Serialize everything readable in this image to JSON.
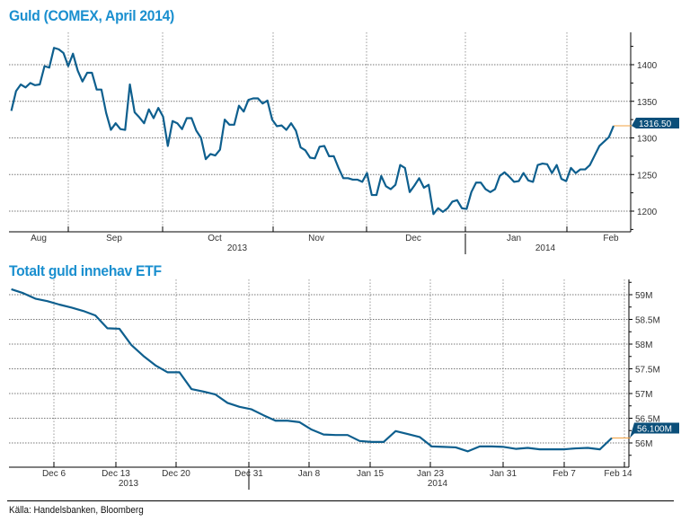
{
  "chart_data": [
    {
      "type": "line",
      "title": "Guld (COMEX, April 2014)",
      "x_tick_labels": [
        "Aug",
        "Sep",
        "Oct",
        "Nov",
        "Dec",
        "Jan",
        "Feb"
      ],
      "x_year_labels": [
        "2013",
        "2014"
      ],
      "y_tick_labels": [
        "1200",
        "1250",
        "1300",
        "1350",
        "1400"
      ],
      "ylim": [
        1175,
        1440
      ],
      "grid": true,
      "last_value_label": "1316.50",
      "colors": {
        "line": "#0e5f8e",
        "title": "#1a8fcf",
        "label_bg": "#0b4f7a",
        "last_line": "#f0a040"
      },
      "series": [
        {
          "values": [
            1337,
            1364,
            1373,
            1369,
            1375,
            1372,
            1373,
            1398,
            1396,
            1423,
            1421,
            1416,
            1398,
            1415,
            1392,
            1377,
            1389,
            1389,
            1366,
            1366,
            1334,
            1311,
            1320,
            1312,
            1311,
            1373,
            1335,
            1328,
            1320,
            1339,
            1327,
            1341,
            1329,
            1289,
            1323,
            1320,
            1312,
            1327,
            1327,
            1310,
            1300,
            1271,
            1278,
            1276,
            1284,
            1325,
            1318,
            1318,
            1344,
            1336,
            1352,
            1354,
            1354,
            1347,
            1351,
            1325,
            1316,
            1317,
            1311,
            1320,
            1310,
            1287,
            1283,
            1273,
            1272,
            1288,
            1289,
            1275,
            1275,
            1259,
            1245,
            1245,
            1243,
            1243,
            1240,
            1252,
            1222,
            1222,
            1248,
            1234,
            1230,
            1236,
            1263,
            1259,
            1226,
            1235,
            1245,
            1232,
            1236,
            1196,
            1204,
            1199,
            1204,
            1213,
            1215,
            1204,
            1203,
            1226,
            1239,
            1239,
            1230,
            1226,
            1230,
            1248,
            1253,
            1247,
            1240,
            1241,
            1252,
            1242,
            1240,
            1263,
            1265,
            1264,
            1252,
            1263,
            1244,
            1241,
            1259,
            1252,
            1257,
            1257,
            1263,
            1276,
            1289,
            1295,
            1301,
            1316.5
          ]
        }
      ]
    },
    {
      "type": "line",
      "title": "Totalt guld innehav ETF",
      "x_tick_labels": [
        "Dec 6",
        "Dec 13",
        "Dec 20",
        "Dec 31",
        "Jan 8",
        "Jan 15",
        "Jan 23",
        "Jan 31",
        "Feb 7",
        "Feb 14"
      ],
      "x_year_labels": [
        "2013",
        "2014"
      ],
      "y_tick_labels": [
        "56M",
        "56.5M",
        "57M",
        "57.5M",
        "58M",
        "58.5M",
        "59M"
      ],
      "ylim": [
        55.5,
        59.3
      ],
      "grid": true,
      "last_value_label": "56.100M",
      "colors": {
        "line": "#0e5f8e",
        "title": "#1a8fcf",
        "label_bg": "#0b4f7a",
        "last_line": "#f0a040"
      },
      "series": [
        {
          "values": [
            59.11,
            59.03,
            58.92,
            58.87,
            58.8,
            58.74,
            58.67,
            58.58,
            58.32,
            58.31,
            57.98,
            57.76,
            57.57,
            57.43,
            57.43,
            57.09,
            57.04,
            56.98,
            56.81,
            56.73,
            56.68,
            56.56,
            56.45,
            56.45,
            56.42,
            56.27,
            56.17,
            56.16,
            56.16,
            56.04,
            56.02,
            56.02,
            56.24,
            56.18,
            56.12,
            55.93,
            55.92,
            55.91,
            55.83,
            55.93,
            55.93,
            55.92,
            55.88,
            55.9,
            55.87,
            55.87,
            55.87,
            55.89,
            55.9,
            55.87,
            56.1
          ]
        }
      ]
    }
  ],
  "source": "Källa: Handelsbanken, Bloomberg"
}
